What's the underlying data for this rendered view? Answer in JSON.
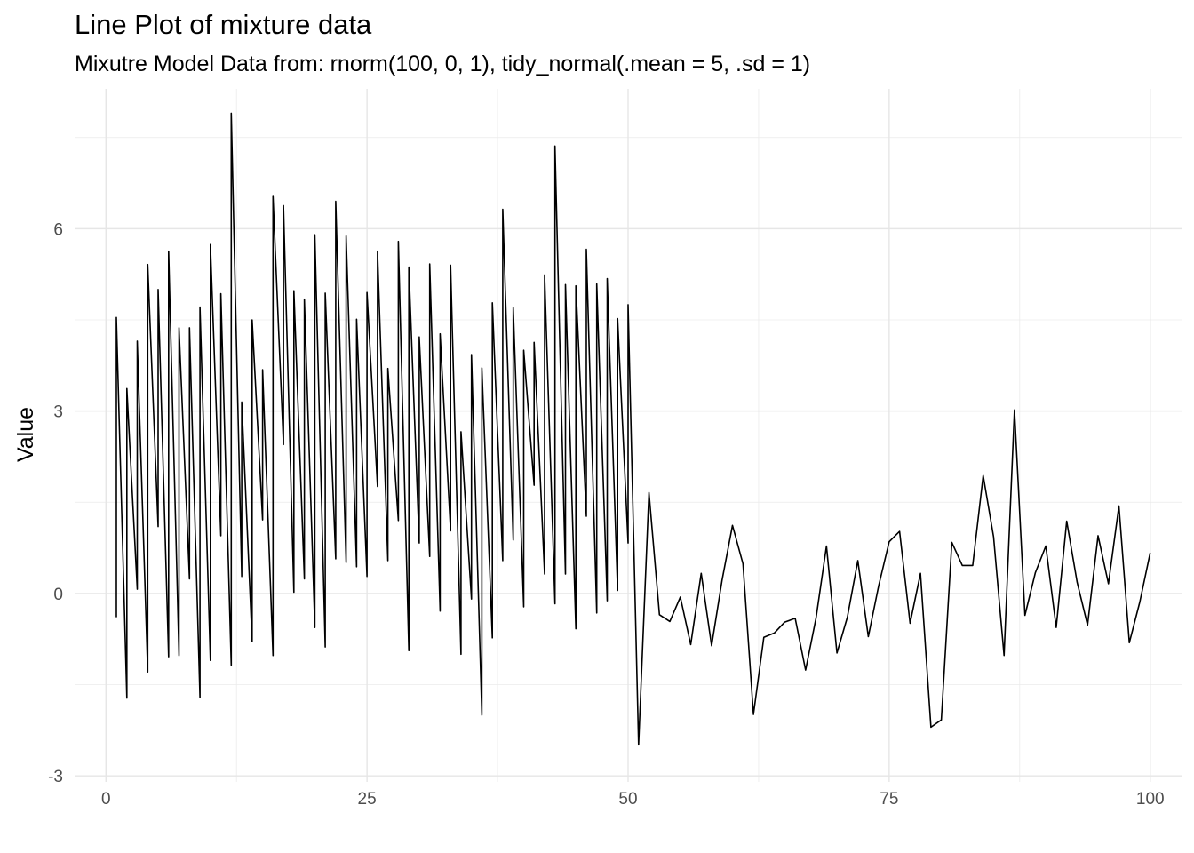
{
  "chart_data": {
    "type": "line",
    "title": "Line Plot of mixture data",
    "subtitle": "Mixutre Model Data from: rnorm(100, 0, 1), tidy_normal(.mean = 5, .sd = 1)",
    "xlabel": "",
    "ylabel": "Value",
    "xlim": [
      -3,
      103
    ],
    "ylim": [
      -3.1,
      8.3
    ],
    "x_ticks": [
      0,
      25,
      50,
      75,
      100
    ],
    "x_tick_labels": [
      "0",
      "25",
      "50",
      "75",
      "100"
    ],
    "y_ticks": [
      -3,
      0,
      3,
      6
    ],
    "y_tick_labels": [
      "-3",
      "0",
      "3",
      "6"
    ],
    "grid": true,
    "line_color": "#000000",
    "series": [
      {
        "x": [
          1,
          1,
          2,
          2,
          3,
          3,
          4,
          4,
          5,
          5,
          6,
          6,
          7,
          7,
          8,
          8,
          9,
          9,
          10,
          10,
          11,
          11,
          12,
          12,
          13,
          13,
          14,
          14,
          15,
          15,
          16,
          16,
          17,
          17,
          18,
          18,
          19,
          19,
          20,
          20,
          21,
          21,
          22,
          22,
          23,
          23,
          24,
          24,
          25,
          25,
          26,
          26,
          27,
          27,
          28,
          28,
          29,
          29,
          30,
          30,
          31,
          31,
          32,
          32,
          33,
          33,
          34,
          34,
          35,
          35,
          36,
          36,
          37,
          37,
          38,
          38,
          39,
          39,
          40,
          40,
          41,
          41,
          42,
          42,
          43,
          43,
          44,
          44,
          45,
          45,
          46,
          46,
          47,
          47,
          48,
          48,
          49,
          49,
          50,
          50,
          51,
          52,
          53,
          54,
          55,
          56,
          57,
          58,
          59,
          60,
          61,
          62,
          63,
          64,
          65,
          66,
          67,
          68,
          69,
          70,
          71,
          72,
          73,
          74,
          75,
          76,
          77,
          78,
          79,
          80,
          81,
          82,
          83,
          84,
          85,
          86,
          87,
          88,
          89,
          90,
          91,
          92,
          93,
          94,
          95,
          96,
          97,
          98,
          99,
          100
        ],
        "values": [
          -0.39,
          4.54,
          -1.72,
          3.37,
          0.07,
          4.15,
          -1.29,
          5.41,
          1.1,
          5.0,
          -1.04,
          5.63,
          -1.02,
          4.37,
          0.24,
          4.37,
          -1.71,
          4.71,
          -1.1,
          5.74,
          0.95,
          4.93,
          -1.18,
          7.9,
          0.28,
          3.15,
          -0.79,
          4.5,
          1.21,
          3.68,
          -1.02,
          6.53,
          2.45,
          6.38,
          0.02,
          4.98,
          0.24,
          4.84,
          -0.56,
          5.9,
          -0.88,
          4.94,
          0.57,
          6.45,
          0.51,
          5.88,
          0.44,
          4.51,
          0.28,
          4.95,
          1.76,
          5.63,
          0.54,
          3.7,
          1.2,
          5.79,
          -0.94,
          5.37,
          0.83,
          4.22,
          0.61,
          5.42,
          -0.29,
          4.27,
          1.03,
          5.4,
          -1.0,
          2.66,
          -0.09,
          3.93,
          -2.0,
          3.71,
          -0.73,
          4.78,
          0.54,
          6.32,
          0.88,
          4.7,
          -0.22,
          4.0,
          1.78,
          4.13,
          0.32,
          5.24,
          -0.17,
          7.36,
          0.32,
          5.08,
          -0.58,
          5.06,
          1.27,
          5.66,
          -0.32,
          5.09,
          -0.12,
          5.18,
          0.05,
          4.52,
          0.83,
          4.75,
          -2.49,
          1.66,
          -0.35,
          -0.46,
          -0.06,
          -0.84,
          0.33,
          -0.86,
          0.22,
          1.12,
          0.49,
          -1.99,
          -0.72,
          -0.65,
          -0.47,
          -0.41,
          -1.26,
          -0.4,
          0.78,
          -0.98,
          -0.39,
          0.54,
          -0.71,
          0.13,
          0.85,
          1.02,
          -0.49,
          0.33,
          -2.2,
          -2.08,
          0.84,
          0.46,
          0.46,
          1.94,
          0.93,
          -1.02,
          3.02,
          -0.36,
          0.34,
          0.78,
          -0.56,
          1.19,
          0.18,
          -0.52,
          0.95,
          0.16,
          1.44,
          -0.81,
          -0.14,
          0.67
        ]
      }
    ]
  }
}
